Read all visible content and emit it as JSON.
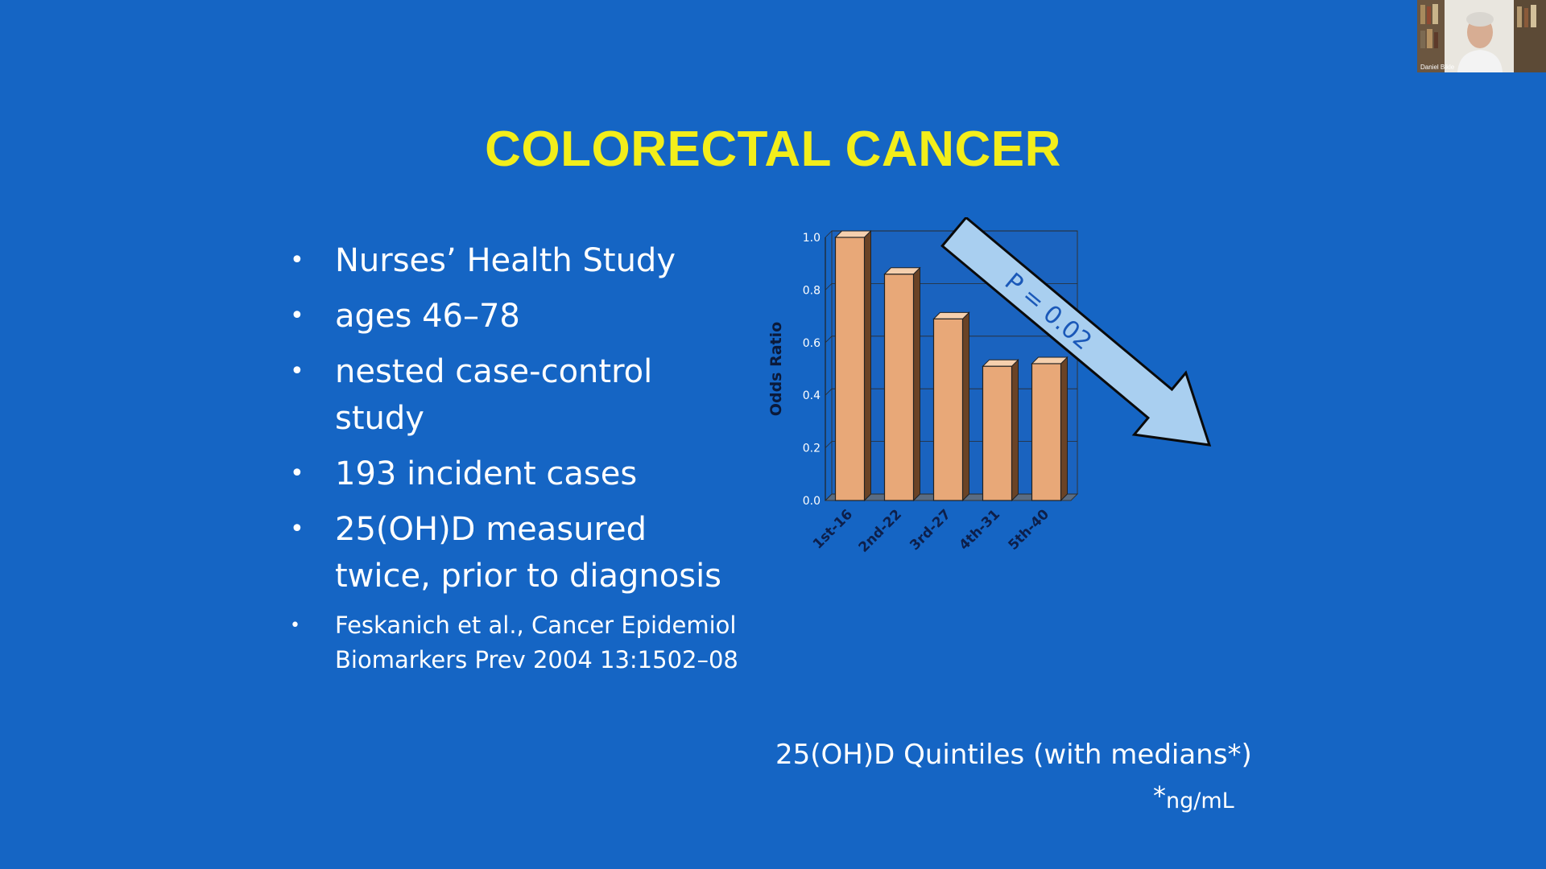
{
  "slide": {
    "title": "COLORECTAL CANCER",
    "bullets": [
      {
        "text": "Nurses’ Health Study",
        "size": "large"
      },
      {
        "text": "ages 46–78",
        "size": "large"
      },
      {
        "text": "nested case-control study",
        "size": "large"
      },
      {
        "text": "193 incident cases",
        "size": "large"
      },
      {
        "text": "25(OH)D measured twice, prior to diagnosis",
        "size": "large"
      },
      {
        "text": "Feskanich et al., Cancer Epidemiol Biomarkers Prev 2004 13:1502–08",
        "size": "small"
      }
    ],
    "bullet_glyph": "•",
    "x_caption": "25(OH)D Quintiles (with medians*)",
    "unit_star": "*",
    "unit_note": "ng/mL"
  },
  "chart_data": {
    "type": "bar",
    "categories": [
      "1st-16",
      "2nd-22",
      "3rd-27",
      "4th-31",
      "5th-40"
    ],
    "values": [
      1.0,
      0.86,
      0.69,
      0.51,
      0.52
    ],
    "ylabel": "Odds Ratio",
    "ylim": [
      0,
      1.0
    ],
    "yticks": [
      "0.0",
      "0.2",
      "0.4",
      "0.6",
      "0.8",
      "1.0"
    ],
    "annotation": "P = 0.02",
    "grid": true,
    "colors": {
      "bar": "#e8a878",
      "arrow": "#a9cff0",
      "annotation": "#1a58b8"
    }
  },
  "video_thumbnail": {
    "participant_name": "Daniel Bikle"
  },
  "colors": {
    "background": "#1565c4",
    "title": "#f3ee1a",
    "text": "#ffffff"
  }
}
